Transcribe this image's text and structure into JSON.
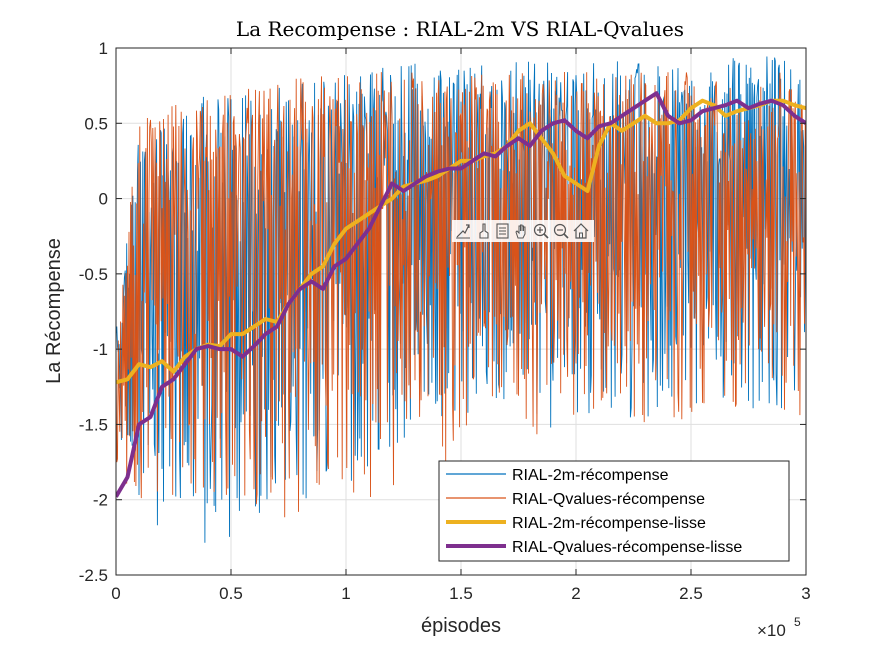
{
  "chart_data": {
    "type": "line",
    "title": "La Recompense : RIAL-2m VS RIAL-Qvalues",
    "xlabel": "épisodes",
    "ylabel": "La Récompense",
    "x_exponent_label": "×10",
    "x_exponent_power": "5",
    "xlim": [
      0,
      3
    ],
    "ylim": [
      -2.5,
      1
    ],
    "x_ticks": [
      0,
      0.5,
      1,
      1.5,
      2,
      2.5,
      3
    ],
    "x_tick_labels": [
      "0",
      "0.5",
      "1",
      "1.5",
      "2",
      "2.5",
      "3"
    ],
    "y_ticks": [
      1,
      0.5,
      0,
      -0.5,
      -1,
      -1.5,
      -2,
      -2.5
    ],
    "y_tick_labels": [
      "1",
      "0.5",
      "0",
      "-0.5",
      "-1",
      "-1.5",
      "-2",
      "-2.5"
    ],
    "grid": true,
    "legend_position": "bottom-right",
    "series": [
      {
        "name": "RIAL-2m-récompense",
        "color": "#0072BD",
        "style": "noisy",
        "x": [
          0,
          0.1,
          0.2,
          0.3,
          0.4,
          0.5,
          0.6,
          0.7,
          0.8,
          0.9,
          1.0,
          1.1,
          1.2,
          1.3,
          1.4,
          1.5,
          1.6,
          1.7,
          1.8,
          1.9,
          2.0,
          2.1,
          2.2,
          2.3,
          2.4,
          2.5,
          2.6,
          2.7,
          2.8,
          2.9,
          3.0
        ],
        "upper": [
          -0.8,
          0.5,
          0.55,
          0.6,
          0.7,
          0.7,
          0.7,
          0.75,
          0.78,
          0.8,
          0.85,
          0.88,
          0.9,
          0.9,
          0.9,
          0.9,
          0.9,
          0.92,
          0.92,
          0.92,
          0.93,
          0.93,
          0.93,
          0.94,
          0.94,
          0.94,
          0.95,
          0.95,
          0.95,
          0.95,
          0.95
        ],
        "lower": [
          -2.0,
          -2.1,
          -2.2,
          -2.3,
          -2.4,
          -2.3,
          -2.2,
          -2.1,
          -2.0,
          -2.0,
          -1.9,
          -1.8,
          -1.7,
          -1.6,
          -1.6,
          -1.55,
          -1.5,
          -1.5,
          -1.5,
          -1.55,
          -1.6,
          -1.5,
          -1.5,
          -1.5,
          -1.45,
          -1.4,
          -1.4,
          -1.4,
          -1.4,
          -1.4,
          -1.4
        ]
      },
      {
        "name": "RIAL-Qvalues-récompense",
        "color": "#D95319",
        "style": "noisy",
        "x": [
          0,
          0.1,
          0.2,
          0.3,
          0.4,
          0.5,
          0.6,
          0.7,
          0.8,
          0.9,
          1.0,
          1.1,
          1.2,
          1.3,
          1.4,
          1.5,
          1.6,
          1.7,
          1.8,
          1.9,
          2.0,
          2.1,
          2.2,
          2.3,
          2.4,
          2.5,
          2.6,
          2.7,
          2.8,
          2.9,
          3.0
        ],
        "upper": [
          -0.9,
          0.5,
          0.6,
          0.65,
          0.7,
          0.72,
          0.75,
          0.78,
          0.8,
          0.82,
          0.85,
          0.85,
          0.85,
          0.85,
          0.85,
          0.85,
          0.85,
          0.85,
          0.85,
          0.85,
          0.85,
          0.85,
          0.85,
          0.85,
          0.85,
          0.85,
          0.85,
          0.85,
          0.85,
          0.85,
          0.85
        ],
        "lower": [
          -2.0,
          -2.0,
          -2.0,
          -2.0,
          -2.0,
          -2.0,
          -2.1,
          -2.1,
          -2.15,
          -2.0,
          -2.0,
          -2.0,
          -2.05,
          -1.9,
          -1.8,
          -1.7,
          -1.6,
          -1.6,
          -1.6,
          -1.6,
          -1.6,
          -1.55,
          -1.5,
          -1.5,
          -1.5,
          -1.5,
          -1.5,
          -1.5,
          -1.5,
          -1.55,
          -1.55
        ]
      },
      {
        "name": "RIAL-2m-récompense-lisse",
        "color": "#EDB120",
        "style": "thick",
        "x": [
          0,
          0.05,
          0.1,
          0.15,
          0.2,
          0.25,
          0.3,
          0.35,
          0.4,
          0.45,
          0.5,
          0.55,
          0.6,
          0.65,
          0.7,
          0.75,
          0.8,
          0.85,
          0.9,
          0.95,
          1.0,
          1.05,
          1.1,
          1.15,
          1.2,
          1.25,
          1.3,
          1.35,
          1.4,
          1.45,
          1.5,
          1.55,
          1.6,
          1.65,
          1.7,
          1.75,
          1.8,
          1.85,
          1.9,
          1.95,
          2.0,
          2.05,
          2.1,
          2.15,
          2.2,
          2.25,
          2.3,
          2.35,
          2.4,
          2.45,
          2.5,
          2.55,
          2.6,
          2.65,
          2.7,
          2.75,
          2.8,
          2.85,
          2.9,
          2.95,
          3.0
        ],
        "y": [
          -1.22,
          -1.2,
          -1.1,
          -1.12,
          -1.08,
          -1.15,
          -1.05,
          -1.0,
          -0.97,
          -0.98,
          -0.9,
          -0.9,
          -0.85,
          -0.8,
          -0.82,
          -0.7,
          -0.6,
          -0.5,
          -0.45,
          -0.3,
          -0.2,
          -0.15,
          -0.1,
          -0.05,
          0.0,
          0.08,
          0.1,
          0.12,
          0.15,
          0.2,
          0.25,
          0.25,
          0.28,
          0.3,
          0.35,
          0.45,
          0.5,
          0.4,
          0.3,
          0.15,
          0.1,
          0.05,
          0.35,
          0.5,
          0.45,
          0.5,
          0.55,
          0.5,
          0.5,
          0.52,
          0.6,
          0.65,
          0.62,
          0.55,
          0.58,
          0.6,
          0.62,
          0.65,
          0.65,
          0.62,
          0.6
        ]
      },
      {
        "name": "RIAL-Qvalues-récompense-lisse",
        "color": "#7E2F8E",
        "style": "thick",
        "x": [
          0,
          0.05,
          0.1,
          0.15,
          0.2,
          0.25,
          0.3,
          0.35,
          0.4,
          0.45,
          0.5,
          0.55,
          0.6,
          0.65,
          0.7,
          0.75,
          0.8,
          0.85,
          0.9,
          0.95,
          1.0,
          1.05,
          1.1,
          1.15,
          1.2,
          1.25,
          1.3,
          1.35,
          1.4,
          1.45,
          1.5,
          1.55,
          1.6,
          1.65,
          1.7,
          1.75,
          1.8,
          1.85,
          1.9,
          1.95,
          2.0,
          2.05,
          2.1,
          2.15,
          2.2,
          2.25,
          2.3,
          2.35,
          2.4,
          2.45,
          2.5,
          2.55,
          2.6,
          2.65,
          2.7,
          2.75,
          2.8,
          2.85,
          2.9,
          2.95,
          3.0
        ],
        "y": [
          -1.98,
          -1.85,
          -1.5,
          -1.45,
          -1.25,
          -1.2,
          -1.1,
          -1.0,
          -0.98,
          -1.0,
          -1.0,
          -1.05,
          -0.98,
          -0.9,
          -0.85,
          -0.7,
          -0.6,
          -0.55,
          -0.6,
          -0.45,
          -0.4,
          -0.3,
          -0.2,
          -0.05,
          0.1,
          0.05,
          0.1,
          0.15,
          0.18,
          0.2,
          0.2,
          0.25,
          0.3,
          0.28,
          0.35,
          0.4,
          0.35,
          0.45,
          0.5,
          0.52,
          0.45,
          0.4,
          0.48,
          0.5,
          0.55,
          0.6,
          0.65,
          0.7,
          0.55,
          0.5,
          0.52,
          0.58,
          0.6,
          0.62,
          0.65,
          0.6,
          0.63,
          0.65,
          0.62,
          0.55,
          0.5
        ]
      }
    ]
  },
  "toolbar": {
    "icons": [
      "export-icon",
      "brush-icon",
      "datatip-icon",
      "pan-icon",
      "zoom-in-icon",
      "zoom-out-icon",
      "home-icon"
    ]
  }
}
